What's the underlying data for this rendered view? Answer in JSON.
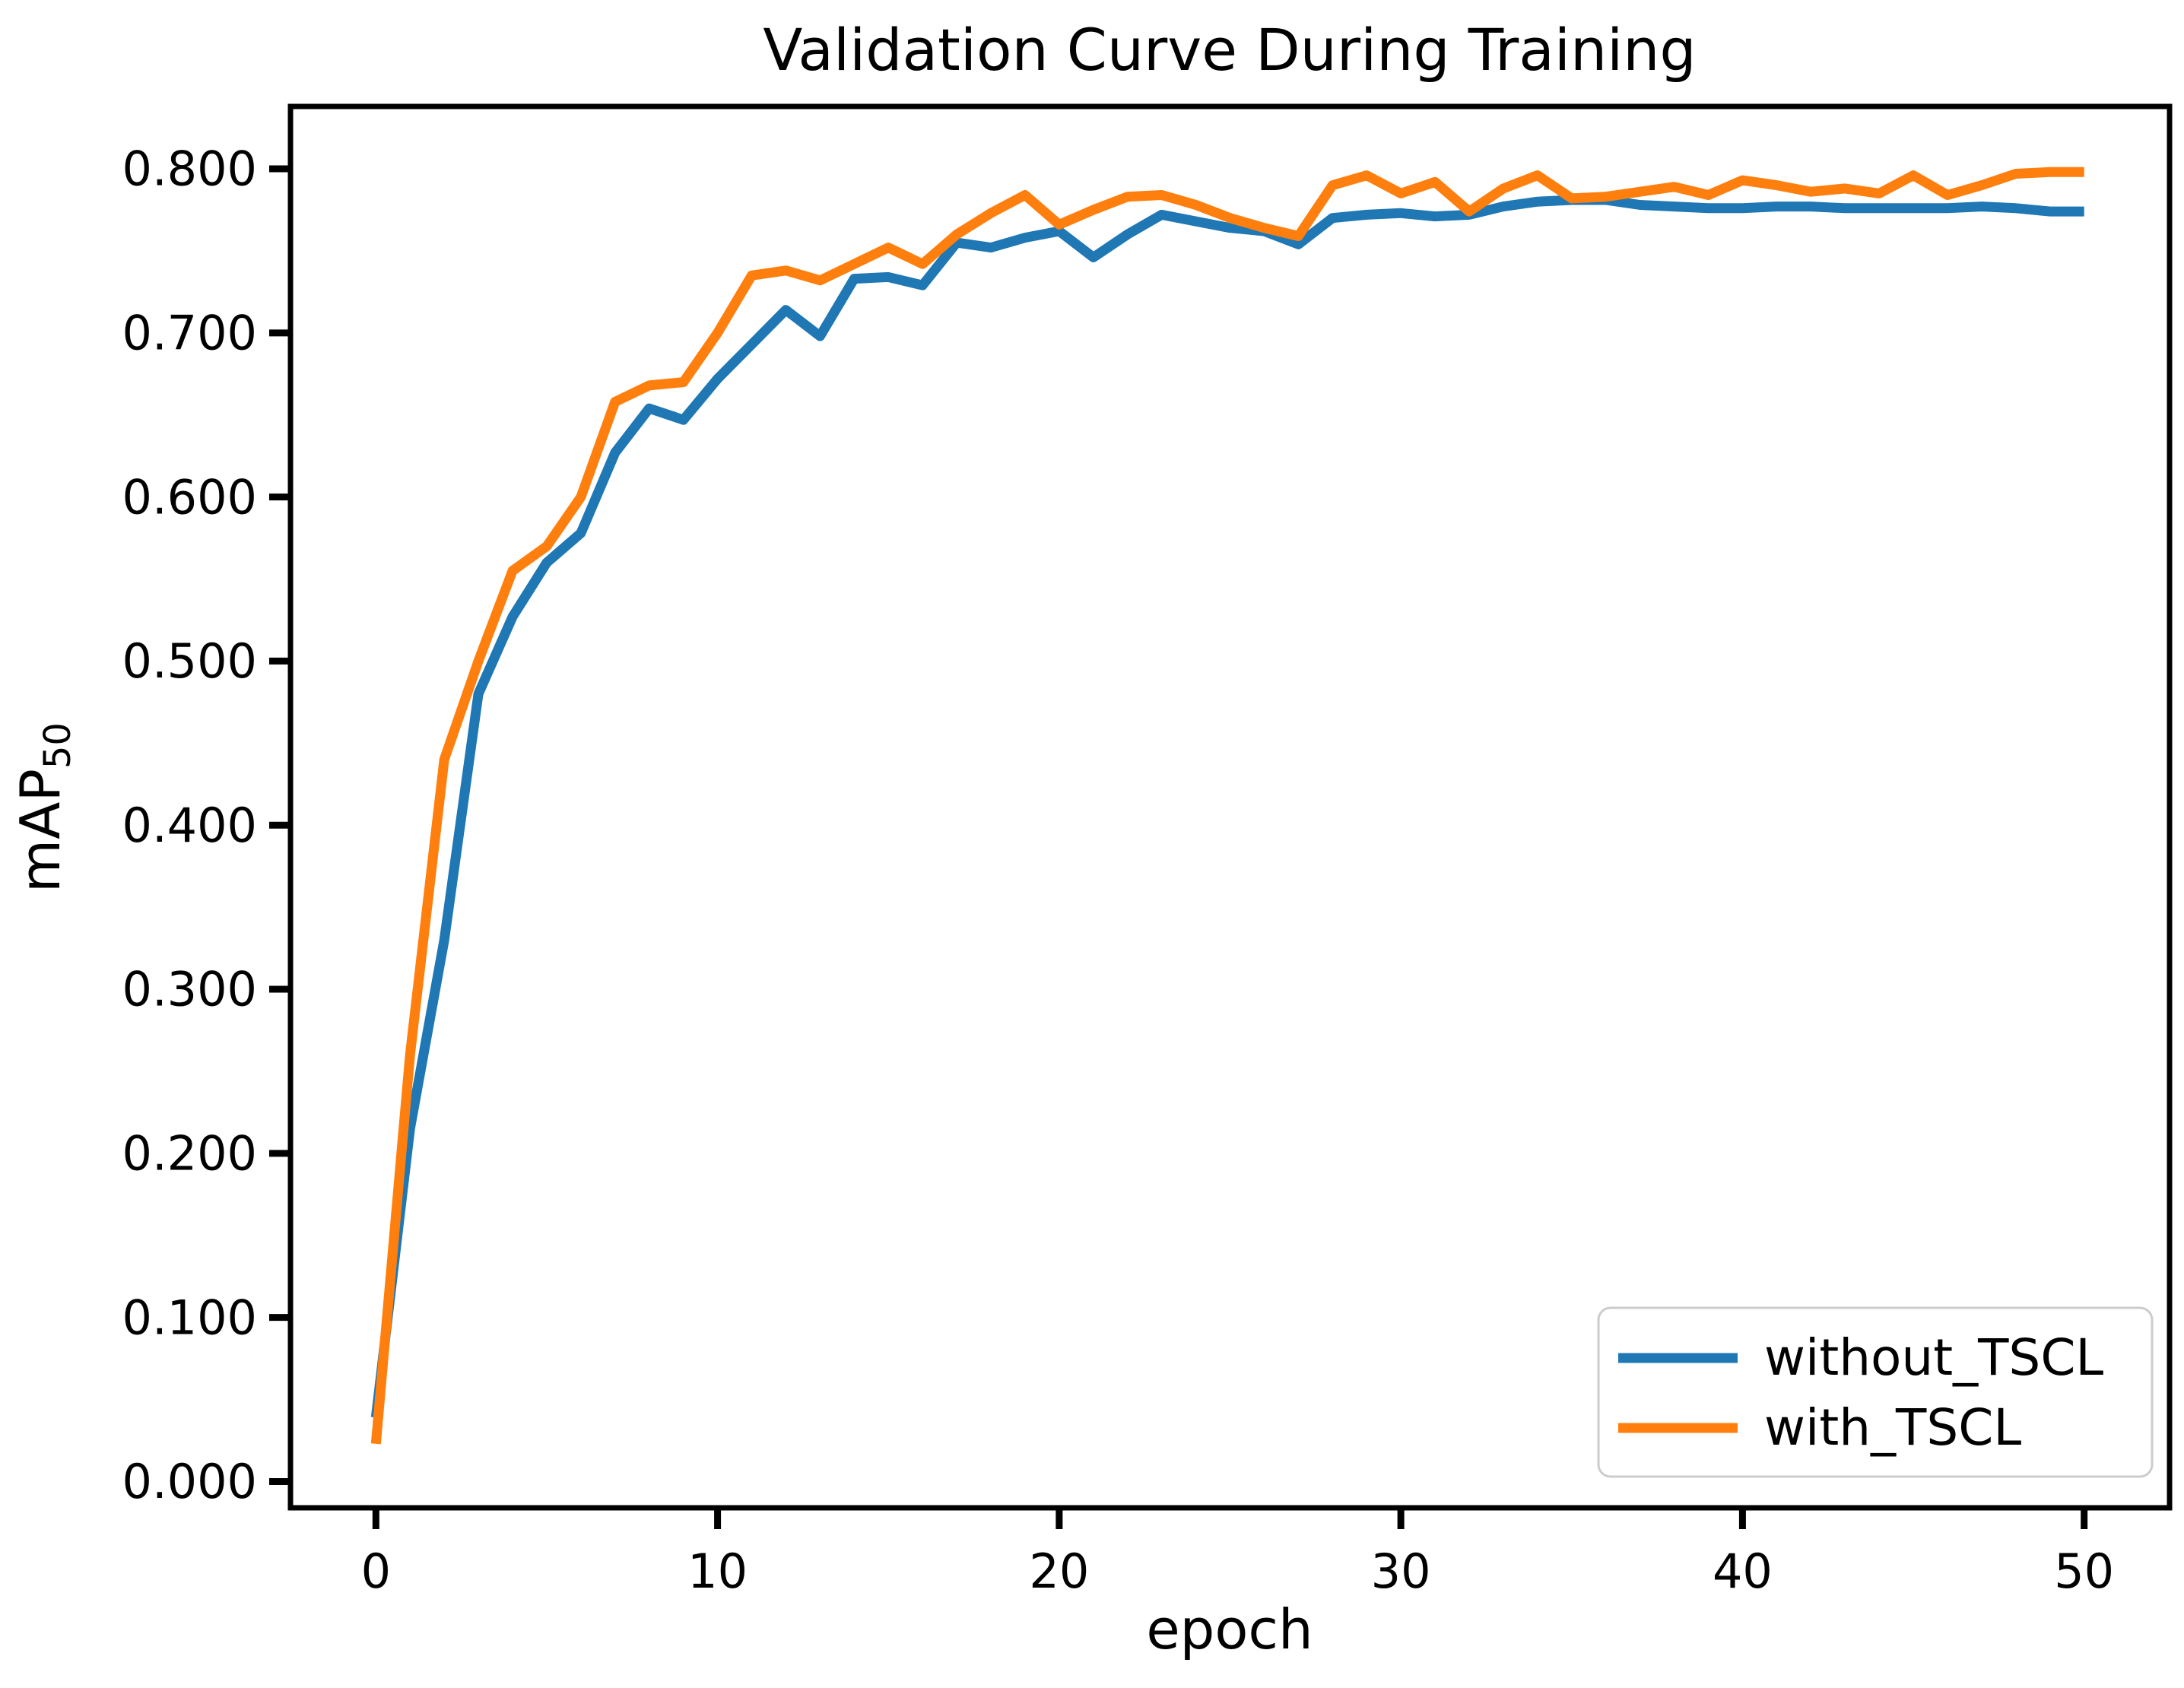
{
  "chart_data": {
    "type": "line",
    "title": "Validation Curve During Training",
    "xlabel": "epoch",
    "ylabel": "mAP_50",
    "ylabel_main": "mAP",
    "ylabel_sub": "50",
    "grid": false,
    "legend_position": "lower right",
    "xlim": [
      -2.5,
      52.5
    ],
    "ylim": [
      -0.016,
      0.838
    ],
    "x_ticks": [
      {
        "value": 0,
        "label": "0"
      },
      {
        "value": 10,
        "label": "10"
      },
      {
        "value": 20,
        "label": "20"
      },
      {
        "value": 30,
        "label": "30"
      },
      {
        "value": 40,
        "label": "40"
      },
      {
        "value": 50,
        "label": "50"
      }
    ],
    "y_ticks": [
      {
        "value": 0.0,
        "label": "0.000"
      },
      {
        "value": 0.1,
        "label": "0.100"
      },
      {
        "value": 0.2,
        "label": "0.200"
      },
      {
        "value": 0.3,
        "label": "0.300"
      },
      {
        "value": 0.4,
        "label": "0.400"
      },
      {
        "value": 0.5,
        "label": "0.500"
      },
      {
        "value": 0.6,
        "label": "0.600"
      },
      {
        "value": 0.7,
        "label": "0.700"
      },
      {
        "value": 0.8,
        "label": "0.800"
      }
    ],
    "x": [
      0,
      1,
      2,
      3,
      4,
      5,
      6,
      7,
      8,
      9,
      10,
      11,
      12,
      13,
      14,
      15,
      16,
      17,
      18,
      19,
      20,
      21,
      22,
      23,
      24,
      25,
      26,
      27,
      28,
      29,
      30,
      31,
      32,
      33,
      34,
      35,
      36,
      37,
      38,
      39,
      40,
      41,
      42,
      43,
      44,
      45,
      46,
      47,
      48,
      49,
      50
    ],
    "series": [
      {
        "name": "without_TSCL",
        "color": "#1f77b4",
        "values": [
          0.039,
          0.215,
          0.33,
          0.48,
          0.527,
          0.56,
          0.578,
          0.627,
          0.654,
          0.647,
          0.672,
          0.693,
          0.714,
          0.698,
          0.733,
          0.734,
          0.729,
          0.755,
          0.752,
          0.758,
          0.762,
          0.746,
          0.76,
          0.772,
          0.768,
          0.764,
          0.762,
          0.754,
          0.77,
          0.772,
          0.773,
          0.771,
          0.772,
          0.777,
          0.78,
          0.781,
          0.781,
          0.778,
          0.777,
          0.776,
          0.776,
          0.777,
          0.777,
          0.776,
          0.776,
          0.776,
          0.776,
          0.777,
          0.776,
          0.774,
          0.774
        ]
      },
      {
        "name": "with_TSCL",
        "color": "#ff7f0e",
        "values": [
          0.023,
          0.26,
          0.44,
          0.5,
          0.555,
          0.57,
          0.6,
          0.658,
          0.668,
          0.67,
          0.7,
          0.735,
          0.738,
          0.732,
          0.742,
          0.752,
          0.742,
          0.76,
          0.773,
          0.784,
          0.766,
          0.775,
          0.783,
          0.784,
          0.778,
          0.77,
          0.764,
          0.759,
          0.79,
          0.796,
          0.785,
          0.792,
          0.774,
          0.788,
          0.796,
          0.782,
          0.783,
          0.786,
          0.789,
          0.784,
          0.793,
          0.79,
          0.786,
          0.788,
          0.785,
          0.796,
          0.784,
          0.79,
          0.797,
          0.798,
          0.798
        ]
      }
    ]
  }
}
